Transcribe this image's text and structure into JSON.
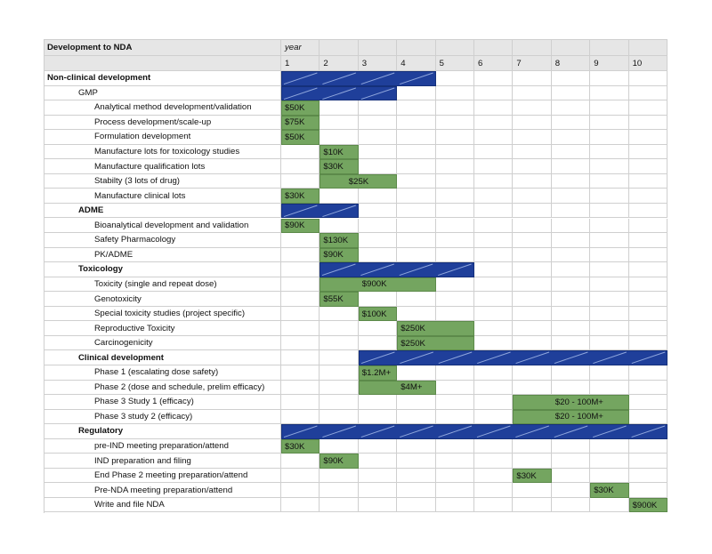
{
  "table": {
    "title": "Development to NDA",
    "year_label": "year",
    "years": [
      "1",
      "2",
      "3",
      "4",
      "5",
      "6",
      "7",
      "8",
      "9",
      "10"
    ]
  },
  "colors": {
    "phase_bar": "#1f3f9a",
    "task_bar": "#74a560"
  },
  "rows": [
    {
      "label": "Non-clinical development",
      "level": 0,
      "bold": true,
      "type": "phase",
      "start": 1,
      "end": 4
    },
    {
      "label": "GMP",
      "level": 1,
      "bold": false,
      "type": "phase",
      "start": 1,
      "end": 3
    },
    {
      "label": "Analytical method development/validation",
      "level": 2,
      "type": "task",
      "start": 1,
      "end": 1,
      "cost": "$50K"
    },
    {
      "label": "Process development/scale-up",
      "level": 2,
      "type": "task",
      "start": 1,
      "end": 1,
      "cost": "$75K"
    },
    {
      "label": "Formulation development",
      "level": 2,
      "type": "task",
      "start": 1,
      "end": 1,
      "cost": "$50K"
    },
    {
      "label": "Manufacture lots for toxicology studies",
      "level": 2,
      "type": "task",
      "start": 2,
      "end": 2,
      "cost": "$10K"
    },
    {
      "label": "Manufacture qualification lots",
      "level": 2,
      "type": "task",
      "start": 2,
      "end": 2,
      "cost": "$30K"
    },
    {
      "label": "Stabilty (3 lots of drug)",
      "level": 2,
      "type": "task",
      "start": 2,
      "end": 3,
      "cost": "$25K",
      "cost_centered": true
    },
    {
      "label": "Manufacture clinical lots",
      "level": 2,
      "type": "task",
      "start": 1,
      "end": 1,
      "cost": "$30K"
    },
    {
      "label": "ADME",
      "level": 1,
      "bold": true,
      "type": "phase",
      "start": 1,
      "end": 2
    },
    {
      "label": "Bioanalytical development and validation",
      "level": 2,
      "type": "task",
      "start": 1,
      "end": 1,
      "cost": "$90K"
    },
    {
      "label": "Safety Pharmacology",
      "level": 2,
      "type": "task",
      "start": 2,
      "end": 2,
      "cost": "$130K"
    },
    {
      "label": "PK/ADME",
      "level": 2,
      "type": "task",
      "start": 2,
      "end": 2,
      "cost": "$90K"
    },
    {
      "label": "Toxicology",
      "level": 1,
      "bold": true,
      "type": "phase",
      "start": 2,
      "end": 5
    },
    {
      "label": "Toxicity (single and repeat dose)",
      "level": 2,
      "type": "task",
      "start": 2,
      "end": 4,
      "cost": "$900K",
      "cost_col": 3
    },
    {
      "label": "Genotoxicity",
      "level": 2,
      "type": "task",
      "start": 2,
      "end": 2,
      "cost": "$55K"
    },
    {
      "label": "Special toxicity studies (project specific)",
      "level": 2,
      "type": "task",
      "start": 3,
      "end": 3,
      "cost": "$100K"
    },
    {
      "label": "Reproductive Toxicity",
      "level": 2,
      "type": "task",
      "start": 4,
      "end": 5,
      "cost": "$250K"
    },
    {
      "label": "Carcinogenicity",
      "level": 2,
      "type": "task",
      "start": 4,
      "end": 5,
      "cost": "$250K"
    },
    {
      "label": "Clinical development",
      "level": 1,
      "bold": true,
      "type": "phase",
      "start": 3,
      "end": 10
    },
    {
      "label": "Phase 1 (escalating dose safety)",
      "level": 2,
      "type": "task",
      "start": 3,
      "end": 3,
      "cost": "$1.2M+"
    },
    {
      "label": "Phase 2 (dose and schedule, prelim efficacy)",
      "level": 2,
      "type": "task",
      "start": 3,
      "end": 4,
      "cost": "$4M+",
      "cost_col": 4
    },
    {
      "label": "Phase 3 Study 1 (efficacy)",
      "level": 2,
      "type": "task",
      "start": 7,
      "end": 9,
      "cost": "$20 -  100M+",
      "cost_col": 8
    },
    {
      "label": "Phase 3 study 2 (efficacy)",
      "level": 2,
      "type": "task",
      "start": 7,
      "end": 9,
      "cost": "$20 -  100M+",
      "cost_col": 8
    },
    {
      "label": "Regulatory",
      "level": 1,
      "bold": true,
      "type": "phase",
      "start": 1,
      "end": 10
    },
    {
      "label": "pre-IND meeting preparation/attend",
      "level": 2,
      "type": "task",
      "start": 1,
      "end": 1,
      "cost": "$30K"
    },
    {
      "label": "IND preparation and filing",
      "level": 2,
      "type": "task",
      "start": 2,
      "end": 2,
      "cost": "$90K"
    },
    {
      "label": "End Phase 2 meeting preparation/attend",
      "level": 2,
      "type": "task",
      "start": 7,
      "end": 7,
      "cost": "$30K"
    },
    {
      "label": "Pre-NDA meeting preparation/attend",
      "level": 2,
      "type": "task",
      "start": 9,
      "end": 9,
      "cost": "$30K"
    },
    {
      "label": "Write and file NDA",
      "level": 2,
      "type": "task",
      "start": 10,
      "end": 10,
      "cost": "$900K"
    }
  ]
}
